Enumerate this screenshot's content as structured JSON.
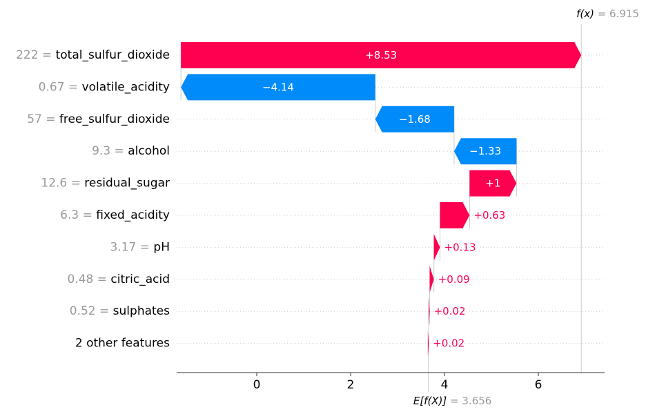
{
  "chart_data": {
    "type": "waterfall",
    "top_label": {
      "prefix": "f(x)",
      "equals": " = ",
      "value": "6.915"
    },
    "base_label": {
      "prefix": "E[f(X)]",
      "equals": " = ",
      "value": "3.656"
    },
    "base_value": 3.656,
    "final_value": 6.915,
    "x_ticks": [
      0,
      2,
      4,
      6
    ],
    "features": [
      {
        "value": "222",
        "name": "total_sulfur_dioxide",
        "contribution": 8.53,
        "label": "+8.53"
      },
      {
        "value": "0.67",
        "name": "volatile_acidity",
        "contribution": -4.14,
        "label": "−4.14"
      },
      {
        "value": "57",
        "name": "free_sulfur_dioxide",
        "contribution": -1.68,
        "label": "−1.68"
      },
      {
        "value": "9.3",
        "name": "alcohol",
        "contribution": -1.33,
        "label": "−1.33"
      },
      {
        "value": "12.6",
        "name": "residual_sugar",
        "contribution": 1.0,
        "label": "+1"
      },
      {
        "value": "6.3",
        "name": "fixed_acidity",
        "contribution": 0.63,
        "label": "+0.63"
      },
      {
        "value": "3.17",
        "name": "pH",
        "contribution": 0.13,
        "label": "+0.13"
      },
      {
        "value": "0.48",
        "name": "citric_acid",
        "contribution": 0.09,
        "label": "+0.09"
      },
      {
        "value": "0.52",
        "name": "sulphates",
        "contribution": 0.02,
        "label": "+0.02"
      },
      {
        "value": "",
        "name": "2 other features",
        "contribution": 0.02,
        "label": "+0.02"
      }
    ],
    "colors": {
      "positive": "#ff0051",
      "negative": "#008bfb",
      "muted": "#999999",
      "text": "#000000"
    }
  }
}
